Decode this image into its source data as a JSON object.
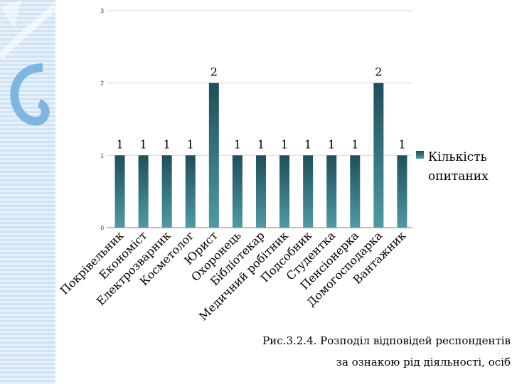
{
  "chart_data": {
    "type": "bar",
    "categories": [
      "Покрівельник",
      "Економіст",
      "Електрозварник",
      "Косметолог",
      "Юрист",
      "Охоронець",
      "Бібліотекар",
      "Медичний робітник",
      "Подсобник",
      "Студентка",
      "Пенсіонерка",
      "Домогосподарка",
      "Вантажник"
    ],
    "series": [
      {
        "name": "Кількість опитаних",
        "values": [
          1,
          1,
          1,
          1,
          2,
          1,
          1,
          1,
          1,
          1,
          1,
          2,
          1
        ]
      }
    ],
    "ylim": [
      0,
      3
    ],
    "yticks": [
      "0",
      "1",
      "2",
      "3"
    ],
    "grid": true,
    "legend": "right",
    "colors": {
      "bar_top": "#1f4f5a",
      "bar_bottom": "#4e9aa4",
      "grid": "#d9d9d9",
      "axis": "#808080"
    }
  },
  "legend_label": [
    "Кількість",
    "опитаних"
  ],
  "caption": {
    "line1": "Рис.3.2.4. Розподіл відповідей респондентів",
    "line2": "за ознакою рід діяльності, осіб"
  }
}
